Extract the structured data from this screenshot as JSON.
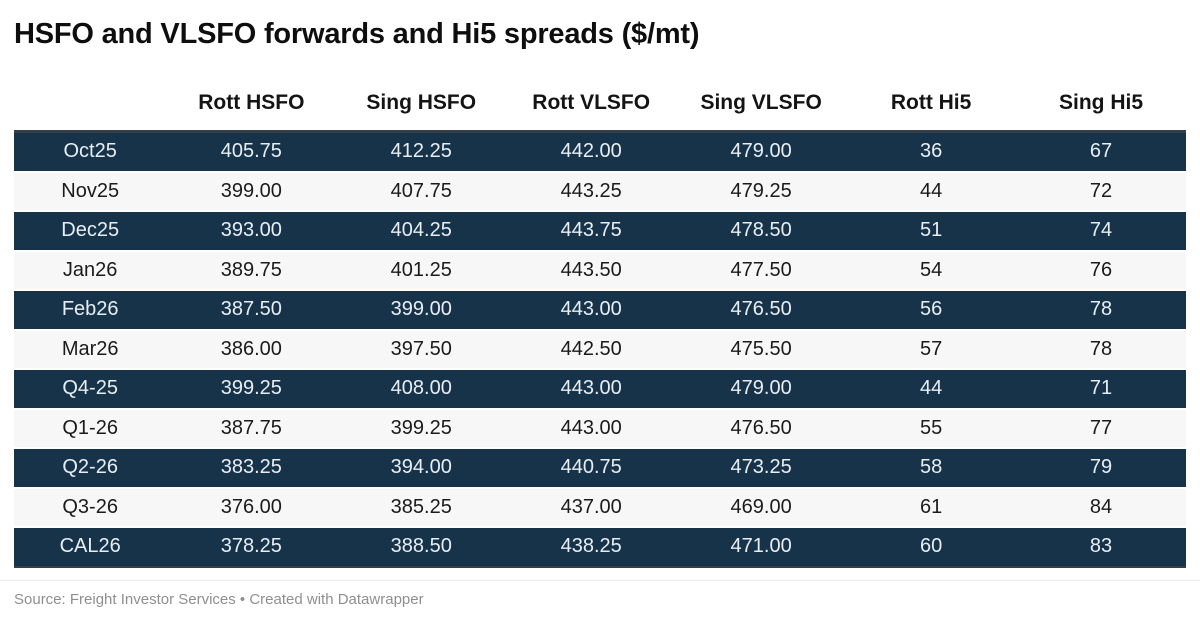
{
  "chart_data": {
    "type": "table",
    "title": "HSFO and VLSFO forwards and Hi5 spreads ($/mt)",
    "columns": [
      "",
      "Rott HSFO",
      "Sing HSFO",
      "Rott VLSFO",
      "Sing VLSFO",
      "Rott Hi5",
      "Sing Hi5"
    ],
    "rows": [
      {
        "label": "Oct25",
        "values": [
          "405.75",
          "412.25",
          "442.00",
          "479.00",
          "36",
          "67"
        ]
      },
      {
        "label": "Nov25",
        "values": [
          "399.00",
          "407.75",
          "443.25",
          "479.25",
          "44",
          "72"
        ]
      },
      {
        "label": "Dec25",
        "values": [
          "393.00",
          "404.25",
          "443.75",
          "478.50",
          "51",
          "74"
        ]
      },
      {
        "label": "Jan26",
        "values": [
          "389.75",
          "401.25",
          "443.50",
          "477.50",
          "54",
          "76"
        ]
      },
      {
        "label": "Feb26",
        "values": [
          "387.50",
          "399.00",
          "443.00",
          "476.50",
          "56",
          "78"
        ]
      },
      {
        "label": "Mar26",
        "values": [
          "386.00",
          "397.50",
          "442.50",
          "475.50",
          "57",
          "78"
        ]
      },
      {
        "label": "Q4-25",
        "values": [
          "399.25",
          "408.00",
          "443.00",
          "479.00",
          "44",
          "71"
        ]
      },
      {
        "label": "Q1-26",
        "values": [
          "387.75",
          "399.25",
          "443.00",
          "476.50",
          "55",
          "77"
        ]
      },
      {
        "label": "Q2-26",
        "values": [
          "383.25",
          "394.00",
          "440.75",
          "473.25",
          "58",
          "79"
        ]
      },
      {
        "label": "Q3-26",
        "values": [
          "376.00",
          "385.25",
          "437.00",
          "469.00",
          "61",
          "84"
        ]
      },
      {
        "label": "CAL26",
        "values": [
          "378.25",
          "388.50",
          "438.25",
          "471.00",
          "60",
          "83"
        ]
      }
    ],
    "layout_hints": {
      "row_striping": "odd rows dark navy with light text, even rows light gray with dark text",
      "alignment": "all cells centered"
    }
  },
  "footer": {
    "source": "Source: Freight Investor Services • Created with Datawrapper"
  },
  "colors": {
    "row_dark": "#17334a",
    "row_light": "#f7f7f7",
    "border_dark": "#333e47",
    "text_dark_row": "#e8eef3",
    "text_light_row": "#1b1b1b",
    "footer_text": "#8f8f8f"
  }
}
